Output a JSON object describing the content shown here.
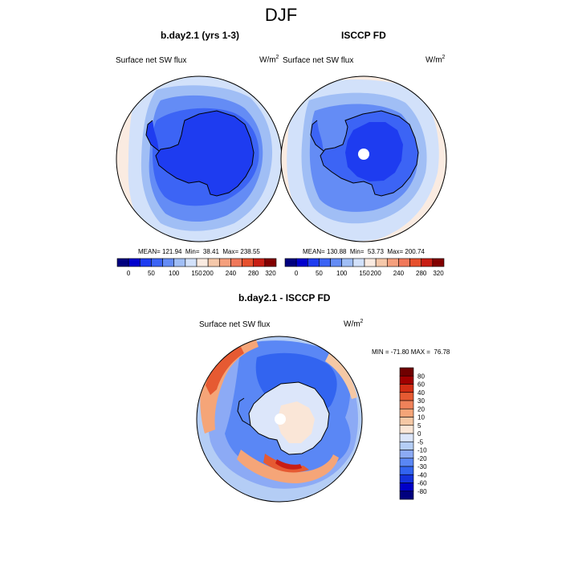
{
  "figure_title": "DJF",
  "colors": {
    "seq": [
      "#00007f",
      "#0000cd",
      "#1e3cf0",
      "#3c64f5",
      "#648cf5",
      "#a0bef5",
      "#d2e1fa",
      "#faebe1",
      "#f5c8aa",
      "#f5a07d",
      "#f0785a",
      "#e6502d",
      "#c81e14",
      "#820000"
    ],
    "diff": [
      "#00007f",
      "#0000c8",
      "#1432dc",
      "#3264f0",
      "#5a87f5",
      "#8caaf5",
      "#b4cdf5",
      "#dce6fa",
      "#fae6d7",
      "#f5c8a5",
      "#f5a578",
      "#f0825a",
      "#e65a32",
      "#d22d14",
      "#a00000",
      "#700000"
    ],
    "coast": "#000000"
  },
  "chart_data": [
    {
      "type": "heatmap",
      "title": "b.day2.1 (yrs 1-3)",
      "variable": "Surface net SW flux",
      "units_base": "W/m",
      "units_exp": "2",
      "stats": "MEAN= 121.94  Min=  38.41  Max= 238.55",
      "colorbar_ticks": [
        "0",
        "50",
        "100",
        "150",
        "200",
        "240",
        "280",
        "320"
      ],
      "levels": [
        0,
        25,
        50,
        75,
        100,
        125,
        150,
        175,
        200,
        220,
        240,
        260,
        280,
        300,
        320
      ]
    },
    {
      "type": "heatmap",
      "title": "ISCCP FD",
      "variable": "Surface net SW flux",
      "units_base": "W/m",
      "units_exp": "2",
      "stats": "MEAN= 130.88  Min=  53.73  Max= 200.74",
      "colorbar_ticks": [
        "0",
        "50",
        "100",
        "150",
        "200",
        "240",
        "280",
        "320"
      ],
      "levels": [
        0,
        25,
        50,
        75,
        100,
        125,
        150,
        175,
        200,
        220,
        240,
        260,
        280,
        300,
        320
      ]
    },
    {
      "type": "heatmap",
      "title": "b.day2.1 - ISCCP FD",
      "variable": "Surface net SW flux",
      "units_base": "W/m",
      "units_exp": "2",
      "stats": "MIN = -71.80 MAX =  76.78",
      "colorbar_ticks": [
        "80",
        "60",
        "40",
        "30",
        "20",
        "10",
        "5",
        "0",
        "-5",
        "-10",
        "-20",
        "-30",
        "-40",
        "-60",
        "-80"
      ]
    }
  ]
}
